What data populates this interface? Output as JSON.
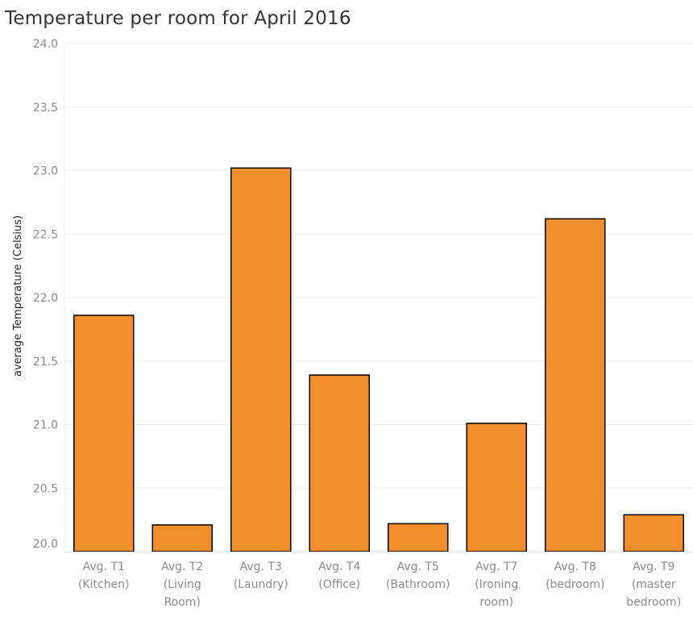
{
  "chart_data": {
    "type": "bar",
    "title": "Temperature per room for April 2016",
    "xlabel": "",
    "ylabel": "average Temperature (Celsius)",
    "ylim": [
      20.0,
      24.0
    ],
    "yticks": [
      "20.0",
      "20.5",
      "21.0",
      "21.5",
      "22.0",
      "22.5",
      "23.0",
      "23.5",
      "24.0"
    ],
    "grid": true,
    "legend": "none",
    "bar_color": "#F28E2B",
    "bar_edge_color": "#000000",
    "categories": [
      [
        "Avg. T1",
        "(Kitchen)"
      ],
      [
        "Avg. T2",
        "(Living",
        "Room)"
      ],
      [
        "Avg. T3",
        "(Laundry)"
      ],
      [
        "Avg. T4",
        "(Office)"
      ],
      [
        "Avg. T5",
        "(Bathroom)"
      ],
      [
        "Avg. T7",
        "(Ironing",
        "room)"
      ],
      [
        "Avg. T8",
        "(bedroom)"
      ],
      [
        "Avg. T9",
        "(master",
        "bedroom)"
      ]
    ],
    "values": [
      21.86,
      20.21,
      23.02,
      21.39,
      20.22,
      21.01,
      22.62,
      20.29
    ]
  }
}
